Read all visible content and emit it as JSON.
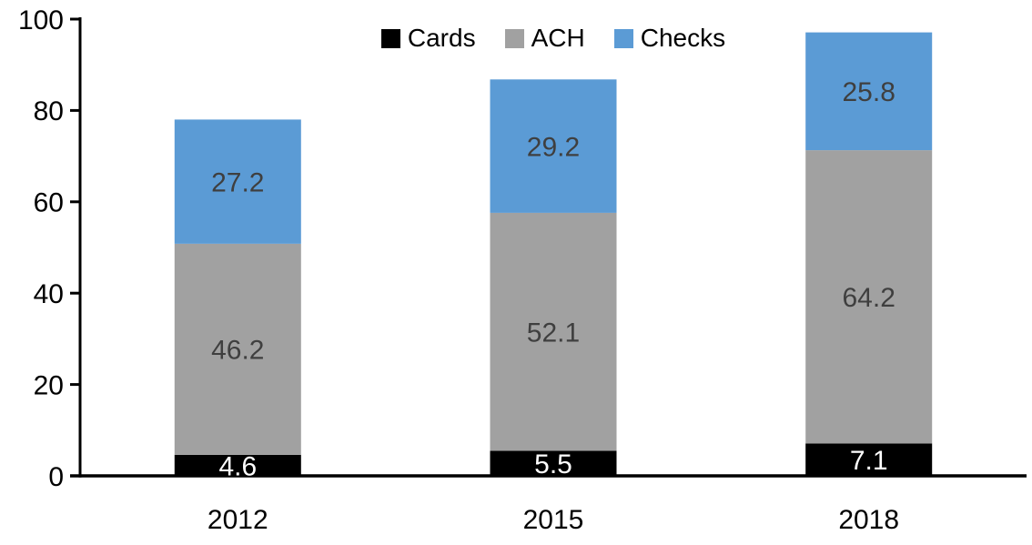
{
  "chart_data": {
    "type": "bar",
    "stacked": true,
    "title": "",
    "xlabel": "",
    "ylabel": "",
    "categories": [
      "2012",
      "2015",
      "2018"
    ],
    "series": [
      {
        "name": "Cards",
        "values": [
          4.6,
          5.5,
          7.1
        ],
        "color": "#000000",
        "label_color": "#ffffff"
      },
      {
        "name": "ACH",
        "values": [
          46.2,
          52.1,
          64.2
        ],
        "color": "#a1a1a1",
        "label_color": "#3f3f3f"
      },
      {
        "name": "Checks",
        "values": [
          27.2,
          29.2,
          25.8
        ],
        "color": "#5b9bd5",
        "label_color": "#3f3f3f"
      }
    ],
    "totals": [
      78.0,
      86.8,
      97.1
    ],
    "ylim": [
      0,
      100
    ],
    "yticks": [
      0,
      20,
      40,
      60,
      80,
      100
    ],
    "grid": false,
    "data_labels": true,
    "legend_position": "top-center",
    "axis_color": "#000000",
    "tick_label_color": "#000000",
    "category_label_color": "#000000"
  }
}
